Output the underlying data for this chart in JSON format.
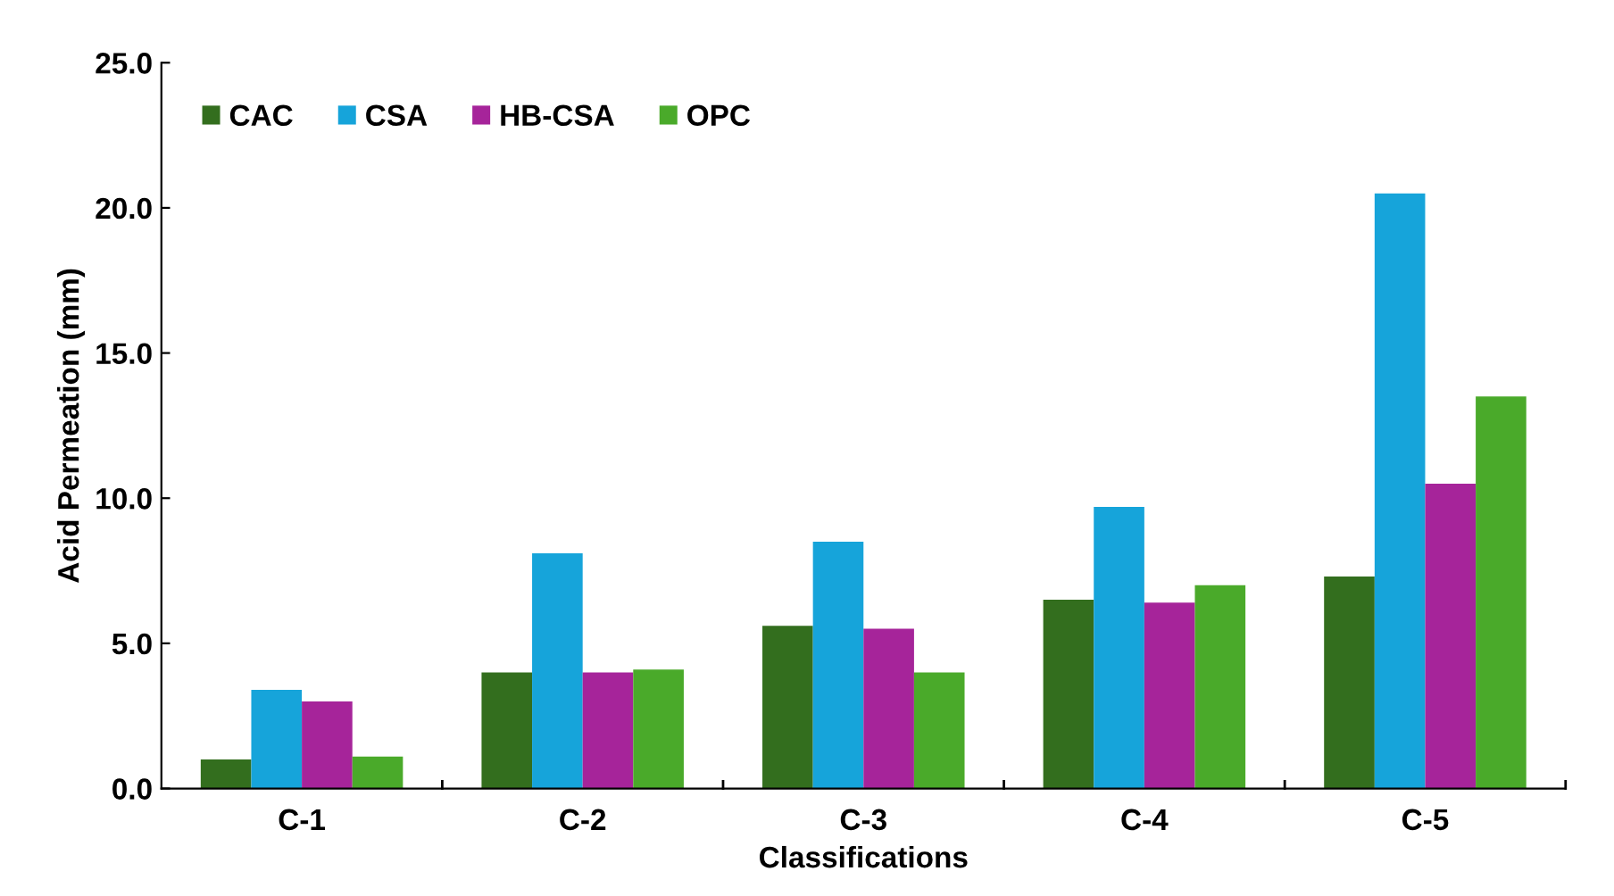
{
  "chart_data": {
    "type": "bar",
    "xlabel": "Classifications",
    "ylabel": "Acid Permeation (mm)",
    "categories": [
      "C-1",
      "C-2",
      "C-3",
      "C-4",
      "C-5"
    ],
    "series": [
      {
        "name": "CAC",
        "color": "#336e1e",
        "values": [
          1.0,
          4.0,
          5.6,
          6.5,
          7.3
        ]
      },
      {
        "name": "CSA",
        "color": "#16a4da",
        "values": [
          3.4,
          8.1,
          8.5,
          9.7,
          20.5
        ]
      },
      {
        "name": "HB-CSA",
        "color": "#a6249a",
        "values": [
          3.0,
          4.0,
          5.5,
          6.4,
          10.5
        ]
      },
      {
        "name": "OPC",
        "color": "#4aaa2a",
        "values": [
          1.1,
          4.1,
          4.0,
          7.0,
          13.5
        ]
      }
    ],
    "ylim": [
      0,
      25
    ],
    "yticks": [
      {
        "value": 0,
        "label": "0.0"
      },
      {
        "value": 5,
        "label": "5.0"
      },
      {
        "value": 10,
        "label": "10.0"
      },
      {
        "value": 15,
        "label": "15.0"
      },
      {
        "value": 20,
        "label": "20.0"
      },
      {
        "value": 25,
        "label": "25.0"
      }
    ],
    "grid": false,
    "legend": "top left"
  }
}
